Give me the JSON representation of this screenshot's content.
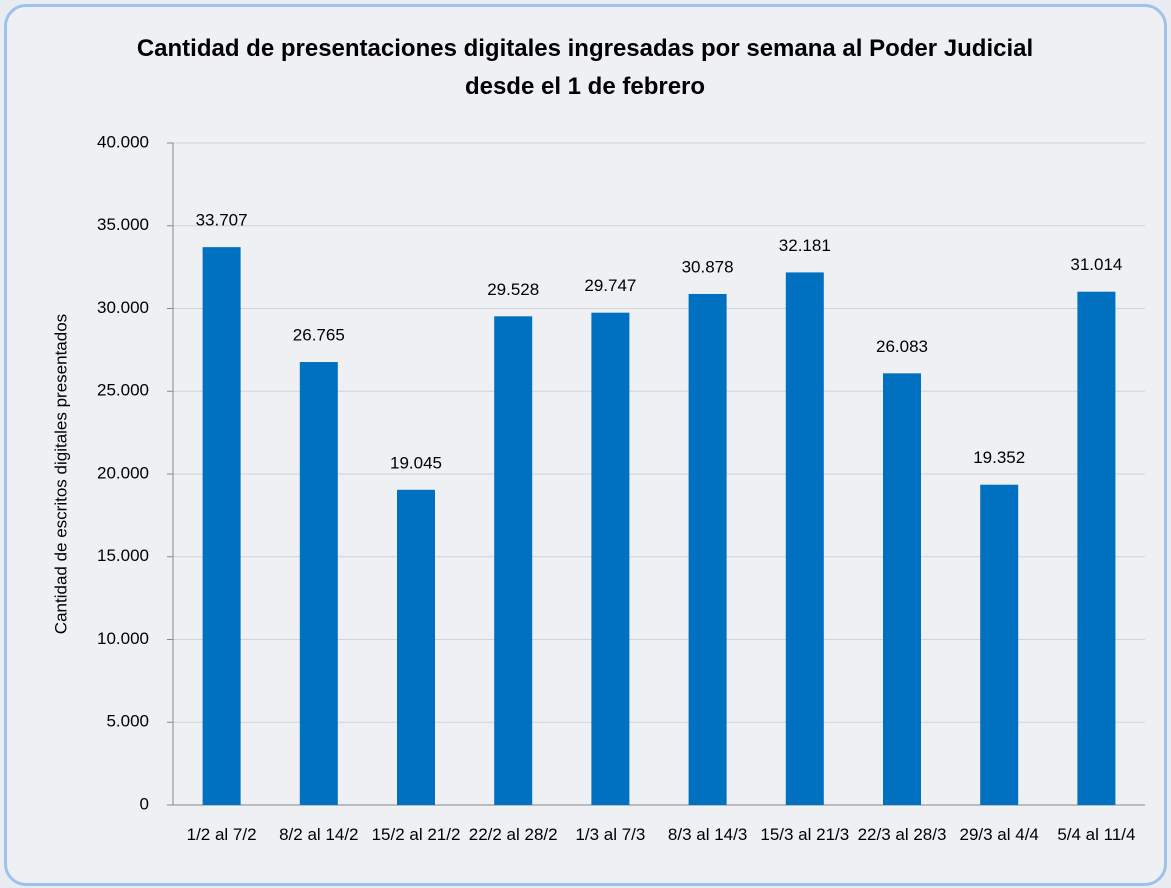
{
  "chart_data": {
    "type": "bar",
    "title": "Cantidad de presentaciones digitales ingresadas por semana al Poder Judicial desde el 1 de febrero",
    "y_label": "Cantidad de escritos digitales presentados",
    "categories": [
      "1/2 al 7/2",
      "8/2 al 14/2",
      "15/2 al 21/2",
      "22/2 al 28/2",
      "1/3 al 7/3",
      "8/3 al 14/3",
      "15/3 al 21/3",
      "22/3 al 28/3",
      "29/3 al 4/4",
      "5/4 al 11/4"
    ],
    "values": [
      33707,
      26765,
      19045,
      29528,
      29747,
      30878,
      32181,
      26083,
      19352,
      31014
    ],
    "value_labels": [
      "33.707",
      "26.765",
      "19.045",
      "29.528",
      "29.747",
      "30.878",
      "32.181",
      "26.083",
      "19.352",
      "31.014"
    ],
    "color": "#0070c0",
    "ylim": [
      0,
      40000
    ],
    "yticks": [
      0,
      {
        "value": 5000,
        "label": "5.000"
      },
      {
        "value": 10000,
        "label": "10.000"
      },
      {
        "value": 15000,
        "label": "15.000"
      },
      {
        "value": 20000,
        "label": "20.000"
      },
      {
        "value": 25000,
        "label": "25.000"
      },
      {
        "value": 30000,
        "label": "30.000"
      },
      {
        "value": 35000,
        "label": "35.000"
      },
      {
        "value": 40000,
        "label": "40.000"
      }
    ],
    "grid": true
  }
}
